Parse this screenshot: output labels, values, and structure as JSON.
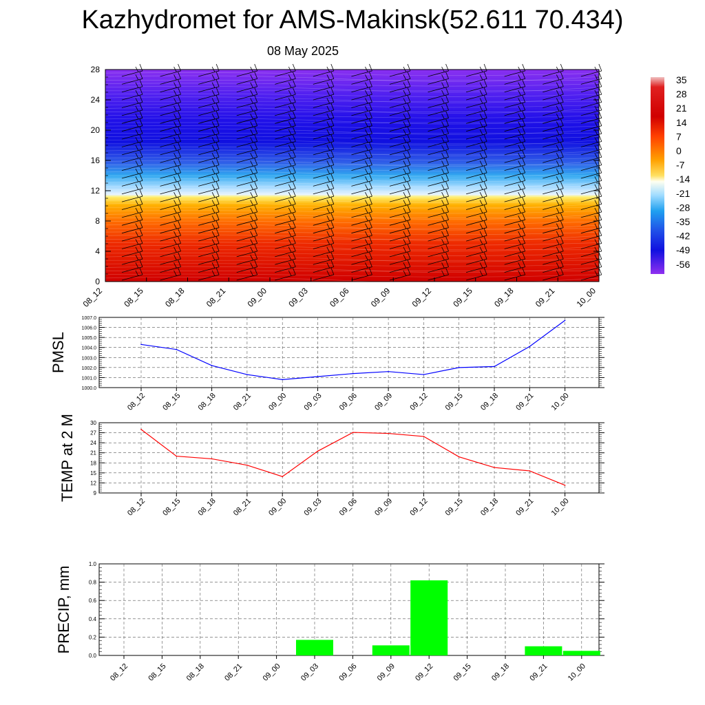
{
  "title": "Kazhydromet for AMS-Makinsk(52.611 70.434)",
  "subtitle": "08 May 2025",
  "time_labels": [
    "08_12",
    "08_15",
    "08_18",
    "08_21",
    "09_00",
    "09_03",
    "09_06",
    "09_09",
    "09_12",
    "09_15",
    "09_18",
    "09_21",
    "10_00"
  ],
  "chart_data": [
    {
      "type": "heatmap",
      "description_ylabel": "",
      "x": [
        "08_12",
        "08_15",
        "08_18",
        "08_21",
        "09_00",
        "09_03",
        "09_06",
        "09_09",
        "09_12",
        "09_15",
        "09_18",
        "09_21",
        "10_00"
      ],
      "y_ticks": [
        0,
        4,
        8,
        12,
        16,
        20,
        24,
        28
      ],
      "ylim": [
        0,
        28
      ],
      "colorbar": {
        "labels": [
          "35",
          "28",
          "21",
          "14",
          "7",
          "0",
          "-7",
          "-14",
          "-21",
          "-28",
          "-35",
          "-42",
          "-49",
          "-56"
        ],
        "range": [
          -63,
          35
        ]
      },
      "wind_barbs": true
    },
    {
      "type": "line",
      "ylabel": "PMSL",
      "x": [
        "08_12",
        "08_15",
        "08_18",
        "08_21",
        "09_00",
        "09_03",
        "09_06",
        "09_09",
        "09_12",
        "09_15",
        "09_18",
        "09_21",
        "10_00"
      ],
      "values": [
        1004.3,
        1003.8,
        1002.2,
        1001.3,
        1000.8,
        1001.1,
        1001.4,
        1001.6,
        1001.3,
        1002.0,
        1002.1,
        1004.1,
        1006.7
      ],
      "ylim": [
        1000.0,
        1007.0
      ],
      "y_ticks": [
        "1000.0",
        "1001.0",
        "1002.0",
        "1003.0",
        "1004.0",
        "1005.0",
        "1006.0",
        "1007.0"
      ],
      "color": "#0000ff",
      "grid": true
    },
    {
      "type": "line",
      "ylabel": "TEMP at 2 M",
      "x": [
        "08_12",
        "08_15",
        "08_18",
        "08_21",
        "09_00",
        "09_03",
        "09_06",
        "09_09",
        "09_12",
        "09_15",
        "09_18",
        "09_21",
        "10_00"
      ],
      "values": [
        28.0,
        20.0,
        19.2,
        17.3,
        13.9,
        21.5,
        27.1,
        26.8,
        25.9,
        19.8,
        16.6,
        15.6,
        11.3
      ],
      "ylim": [
        9,
        30
      ],
      "y_ticks": [
        "9",
        "12",
        "15",
        "18",
        "21",
        "24",
        "27",
        "30"
      ],
      "color": "#ff0000",
      "grid": true
    },
    {
      "type": "bar",
      "ylabel": "PRECIP, mm",
      "categories": [
        "08_12",
        "08_15",
        "08_18",
        "08_21",
        "09_00",
        "09_03",
        "09_06",
        "09_09",
        "09_12",
        "09_15",
        "09_18",
        "09_21",
        "10_00"
      ],
      "values": [
        0,
        0,
        0,
        0,
        0,
        0.17,
        0,
        0.11,
        0.82,
        0,
        0,
        0.1,
        0.05
      ],
      "ylim": [
        0.0,
        1.0
      ],
      "y_ticks": [
        "0.0",
        "0.2",
        "0.4",
        "0.6",
        "0.8",
        "1.0"
      ],
      "color": "#00ff00",
      "grid": true
    }
  ]
}
